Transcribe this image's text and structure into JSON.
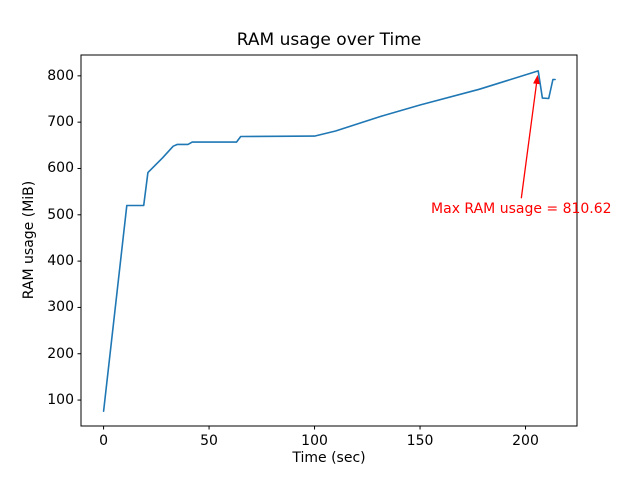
{
  "chart_data": {
    "type": "line",
    "title": "RAM usage over Time",
    "xlabel": "Time (sec)",
    "ylabel": "RAM usage (MiB)",
    "x_ticks": [
      0,
      50,
      100,
      150,
      200
    ],
    "y_ticks": [
      100,
      200,
      300,
      400,
      500,
      600,
      700,
      800
    ],
    "xlim": [
      -10.7,
      224.4
    ],
    "ylim": [
      44,
      845
    ],
    "grid": false,
    "legend_position": "none",
    "line_color": "#1f77b4",
    "series": [
      {
        "name": "RAM usage",
        "points": [
          [
            0,
            76
          ],
          [
            11,
            520
          ],
          [
            19,
            520
          ],
          [
            21,
            591
          ],
          [
            28,
            623
          ],
          [
            33,
            648
          ],
          [
            35,
            652
          ],
          [
            40,
            652
          ],
          [
            42,
            657
          ],
          [
            63,
            657
          ],
          [
            65,
            669
          ],
          [
            100,
            670
          ],
          [
            110,
            681
          ],
          [
            131,
            712
          ],
          [
            150,
            737
          ],
          [
            178,
            771
          ],
          [
            206,
            810.62
          ],
          [
            208,
            752
          ],
          [
            211,
            751
          ],
          [
            213,
            792
          ],
          [
            214,
            792
          ]
        ]
      }
    ],
    "annotation": {
      "text": "Max RAM usage = 810.62",
      "color": "#ff0000",
      "arrow_tip_xy": [
        206,
        810.62
      ],
      "text_center_xy": [
        198,
        512
      ]
    }
  }
}
